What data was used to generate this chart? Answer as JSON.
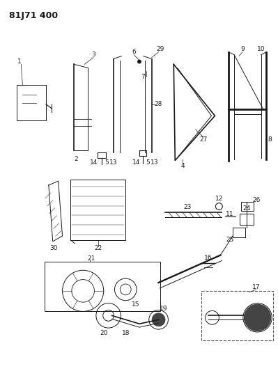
{
  "title": "81J71 400",
  "bg": "#ffffff",
  "lc": "#1a1a1a",
  "fig_w": 3.99,
  "fig_h": 5.33,
  "dpi": 100
}
